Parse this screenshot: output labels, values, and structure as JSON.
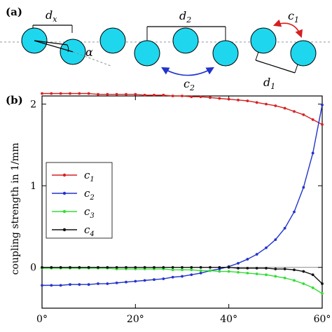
{
  "panel_a": {
    "label": "(a)",
    "dx_main": "d",
    "dx_sub": "x",
    "alpha": "α",
    "d2_main": "d",
    "d2_sub": "2",
    "c2_main": "c",
    "c2_sub": "2",
    "c1_main": "c",
    "c1_sub": "1",
    "d1_main": "d",
    "d1_sub": "1"
  },
  "colors": {
    "circle": "#1ed7ee",
    "c1": "#d62020",
    "c2": "#2233cc",
    "c3": "#33dd33",
    "c4": "#111111",
    "arrow_red": "#d62020",
    "arrow_blue": "#2233cc"
  },
  "chart_data": {
    "type": "line",
    "panel_label": "(b)",
    "ylabel": "coupling strength in 1/mm",
    "xlabel": "",
    "xlim": [
      0,
      60
    ],
    "ylim": [
      -0.5,
      2.1
    ],
    "xticks": [
      0,
      20,
      40,
      60
    ],
    "xtick_labels": [
      "0°",
      "20°",
      "40°",
      "60°"
    ],
    "yticks": [
      0,
      1,
      2
    ],
    "ytick_labels": [
      "0",
      "1",
      "2"
    ],
    "zero_line": true,
    "grid": false,
    "legend_position": "left-middle",
    "x": [
      0,
      2,
      4,
      6,
      8,
      10,
      12,
      14,
      16,
      18,
      20,
      22,
      24,
      26,
      28,
      30,
      32,
      34,
      36,
      38,
      40,
      42,
      44,
      46,
      48,
      50,
      52,
      54,
      56,
      58,
      60
    ],
    "series": [
      {
        "name": "c",
        "sub": "1",
        "color_key": "c1",
        "values": [
          2.13,
          2.13,
          2.13,
          2.13,
          2.13,
          2.13,
          2.12,
          2.12,
          2.12,
          2.12,
          2.12,
          2.11,
          2.11,
          2.11,
          2.1,
          2.1,
          2.09,
          2.09,
          2.08,
          2.07,
          2.06,
          2.05,
          2.04,
          2.02,
          2.0,
          1.98,
          1.95,
          1.91,
          1.87,
          1.81,
          1.75
        ]
      },
      {
        "name": "c",
        "sub": "2",
        "color_key": "c2",
        "values": [
          -0.22,
          -0.22,
          -0.22,
          -0.21,
          -0.21,
          -0.21,
          -0.2,
          -0.2,
          -0.19,
          -0.18,
          -0.17,
          -0.16,
          -0.15,
          -0.14,
          -0.12,
          -0.11,
          -0.09,
          -0.07,
          -0.04,
          -0.02,
          0.01,
          0.05,
          0.1,
          0.16,
          0.24,
          0.34,
          0.48,
          0.68,
          0.98,
          1.4,
          1.99
        ]
      },
      {
        "name": "c",
        "sub": "3",
        "color_key": "c3",
        "values": [
          -0.01,
          -0.01,
          -0.01,
          -0.01,
          -0.01,
          -0.01,
          -0.01,
          -0.01,
          -0.02,
          -0.02,
          -0.02,
          -0.02,
          -0.02,
          -0.02,
          -0.03,
          -0.03,
          -0.03,
          -0.04,
          -0.04,
          -0.05,
          -0.05,
          -0.06,
          -0.07,
          -0.08,
          -0.09,
          -0.11,
          -0.13,
          -0.16,
          -0.2,
          -0.25,
          -0.32
        ]
      },
      {
        "name": "c",
        "sub": "4",
        "color_key": "c4",
        "values": [
          0.0,
          0.0,
          0.0,
          0.0,
          0.0,
          0.0,
          0.0,
          0.0,
          0.0,
          0.0,
          0.0,
          0.0,
          0.0,
          0.0,
          0.0,
          0.0,
          0.0,
          0.0,
          0.0,
          0.0,
          0.0,
          -0.01,
          -0.01,
          -0.01,
          -0.01,
          -0.02,
          -0.02,
          -0.03,
          -0.05,
          -0.09,
          -0.2
        ]
      }
    ]
  }
}
